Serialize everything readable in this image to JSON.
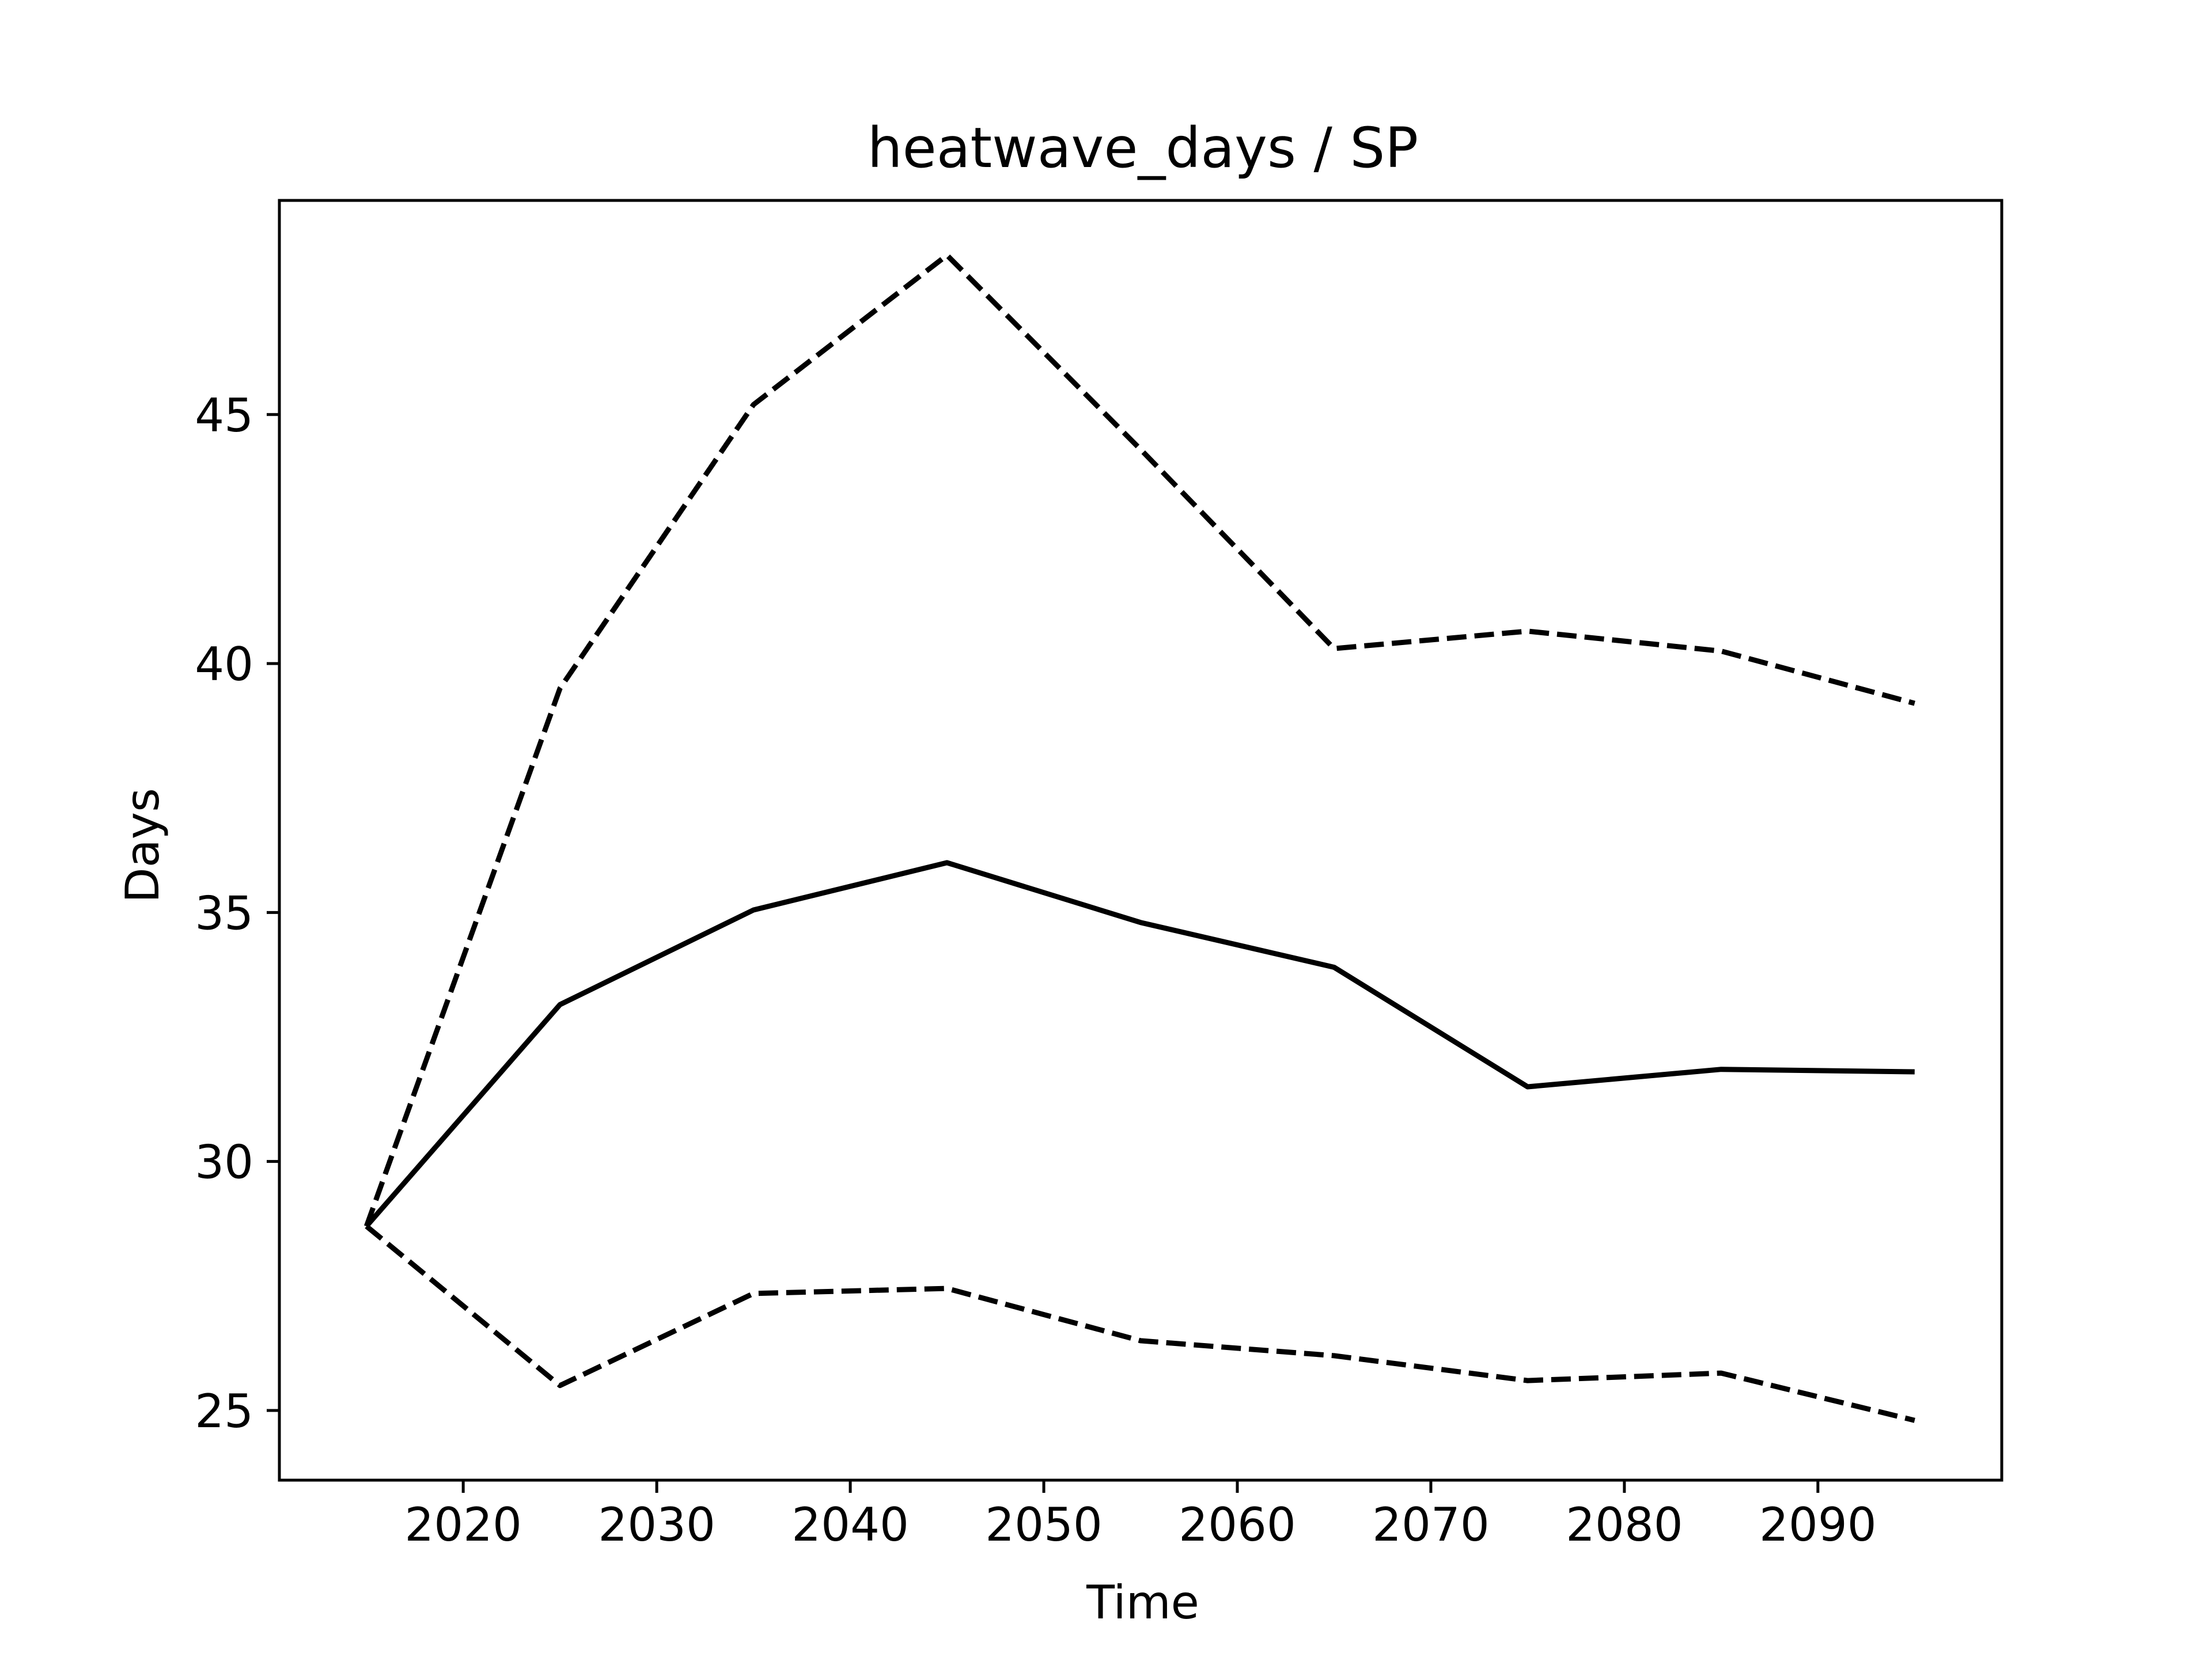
{
  "chart_data": {
    "type": "line",
    "title": "heatwave_days / SP",
    "xlabel": "Time",
    "ylabel": "Days",
    "grid": false,
    "legend": "none",
    "xlim": [
      2010.5,
      2099.5
    ],
    "ylim": [
      23.6,
      49.3
    ],
    "xticks": [
      2020,
      2030,
      2040,
      2050,
      2060,
      2070,
      2080,
      2090
    ],
    "yticks": [
      25,
      30,
      35,
      40,
      45
    ],
    "x": [
      2015,
      2025,
      2035,
      2045,
      2055,
      2065,
      2075,
      2085,
      2095
    ],
    "series": [
      {
        "style": "dashed",
        "color": "#000000",
        "values": [
          28.7,
          39.5,
          45.2,
          48.2,
          44.3,
          40.3,
          40.65,
          40.25,
          39.2
        ]
      },
      {
        "style": "solid",
        "color": "#000000",
        "values": [
          28.7,
          33.15,
          35.05,
          36.0,
          34.8,
          33.9,
          31.5,
          31.85,
          31.8
        ]
      },
      {
        "style": "dashed",
        "color": "#000000",
        "values": [
          28.7,
          25.5,
          27.35,
          27.45,
          26.4,
          26.1,
          25.6,
          25.75,
          24.8
        ]
      }
    ]
  }
}
